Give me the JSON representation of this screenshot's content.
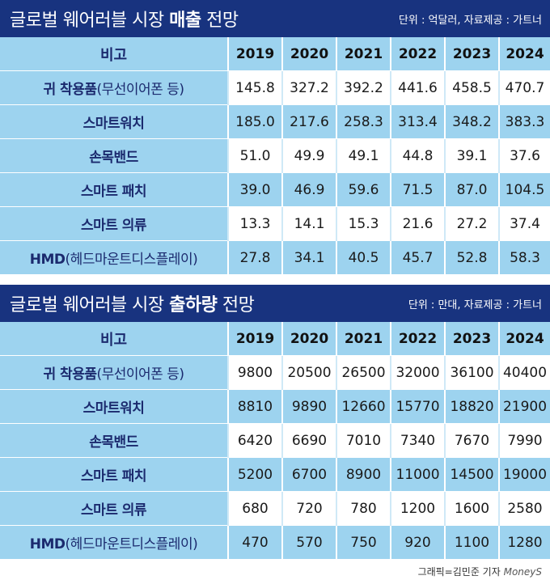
{
  "top": {
    "title_prefix": "글로벌 웨어러블 시장 ",
    "title_bold": "매출",
    "title_suffix": " 전망",
    "source": "단위 : 억달러, 자료제공 : 가트너",
    "header": [
      "비고",
      "2019",
      "2020",
      "2021",
      "2022",
      "2023",
      "2024"
    ],
    "rows": [
      {
        "label_bold": "귀 착용품",
        "label_thin": "(무선이어폰 등)",
        "values": [
          "145.8",
          "327.2",
          "392.2",
          "441.6",
          "458.5",
          "470.7"
        ]
      },
      {
        "label_bold": "스마트워치",
        "label_thin": "",
        "values": [
          "185.0",
          "217.6",
          "258.3",
          "313.4",
          "348.2",
          "383.3"
        ]
      },
      {
        "label_bold": "손목밴드",
        "label_thin": "",
        "values": [
          "51.0",
          "49.9",
          "49.1",
          "44.8",
          "39.1",
          "37.6"
        ]
      },
      {
        "label_bold": "스마트 패치",
        "label_thin": "",
        "values": [
          "39.0",
          "46.9",
          "59.6",
          "71.5",
          "87.0",
          "104.5"
        ]
      },
      {
        "label_bold": "스마트 의류",
        "label_thin": "",
        "values": [
          "13.3",
          "14.1",
          "15.3",
          "21.6",
          "27.2",
          "37.4"
        ]
      },
      {
        "label_bold": "HMD",
        "label_thin": "(헤드마운트디스플레이)",
        "values": [
          "27.8",
          "34.1",
          "40.5",
          "45.7",
          "52.8",
          "58.3"
        ]
      }
    ]
  },
  "bottom": {
    "title_prefix": "글로벌 웨어러블 시장 ",
    "title_bold": "출하량",
    "title_suffix": " 전망",
    "source": "단위 : 만대, 자료제공 : 가트너",
    "header": [
      "비고",
      "2019",
      "2020",
      "2021",
      "2022",
      "2023",
      "2024"
    ],
    "rows": [
      {
        "label_bold": "귀 착용품",
        "label_thin": "(무선이어폰 등)",
        "values": [
          "9800",
          "20500",
          "26500",
          "32000",
          "36100",
          "40400"
        ]
      },
      {
        "label_bold": "스마트워치",
        "label_thin": "",
        "values": [
          "8810",
          "9890",
          "12660",
          "15770",
          "18820",
          "21900"
        ]
      },
      {
        "label_bold": "손목밴드",
        "label_thin": "",
        "values": [
          "6420",
          "6690",
          "7010",
          "7340",
          "7670",
          "7990"
        ]
      },
      {
        "label_bold": "스마트 패치",
        "label_thin": "",
        "values": [
          "5200",
          "6700",
          "8900",
          "11000",
          "14500",
          "19000"
        ]
      },
      {
        "label_bold": "스마트 의류",
        "label_thin": "",
        "values": [
          "680",
          "720",
          "780",
          "1200",
          "1600",
          "2580"
        ]
      },
      {
        "label_bold": "HMD",
        "label_thin": "(헤드마운트디스플레이)",
        "values": [
          "470",
          "570",
          "750",
          "920",
          "1100",
          "1280"
        ]
      }
    ]
  },
  "credit": "그래픽=김민준 기자",
  "logo_text": "MoneyS",
  "colors": {
    "header_bar": "#18337f",
    "row_blue": "#9dd3ef",
    "label_text": "#1b2a6e"
  }
}
